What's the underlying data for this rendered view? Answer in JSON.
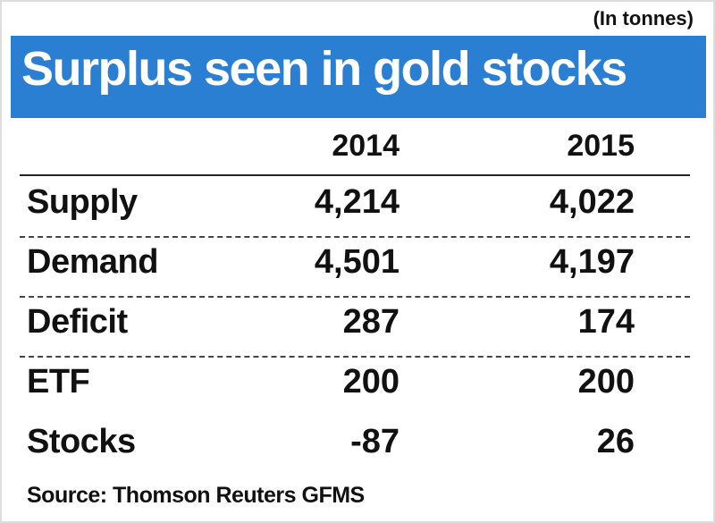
{
  "unit_note": "(In tonnes)",
  "title": "Surplus seen in gold stocks",
  "table": {
    "columns": [
      "2014",
      "2015"
    ],
    "rows": [
      [
        "Supply",
        "4,214",
        "4,022"
      ],
      [
        "Demand",
        "4,501",
        "4,197"
      ],
      [
        "Deficit",
        "287",
        "174"
      ],
      [
        "ETF",
        "200",
        "200"
      ],
      [
        "Stocks",
        "-87",
        "26"
      ]
    ]
  },
  "source": "Source: Thomson Reuters GFMS"
}
